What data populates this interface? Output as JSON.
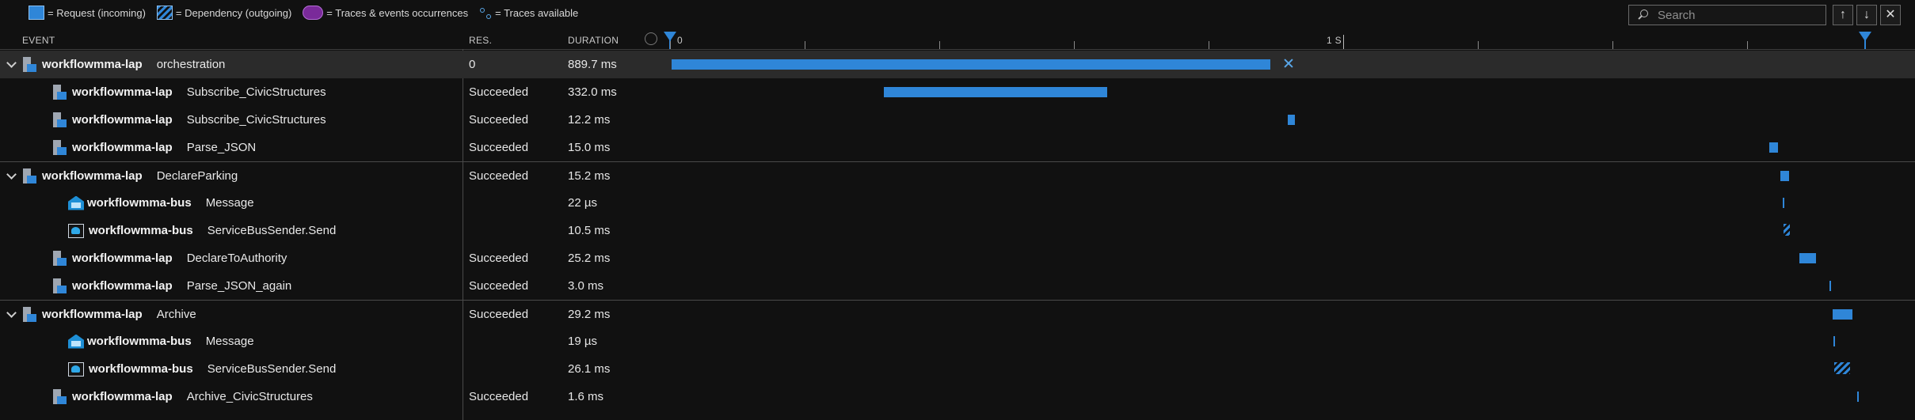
{
  "legend": {
    "request": "= Request (incoming)",
    "dependency": "= Dependency (outgoing)",
    "traces": "= Traces & events occurrences",
    "available": "= Traces available"
  },
  "search": {
    "placeholder": "Search",
    "value": ""
  },
  "toolbar": {
    "up": "↑",
    "down": "↓",
    "close": "✕"
  },
  "columns": {
    "event": "EVENT",
    "res": "RES.",
    "duration": "DURATION"
  },
  "timeline": {
    "label_start": "0",
    "label_1s": "1 S",
    "max_seconds": 1.8
  },
  "colors": {
    "accent": "#2f86d8",
    "background": "#111111",
    "selected_row": "#2b2b2b"
  },
  "rows": [
    {
      "app": "workflowmma-lap",
      "op": "orchestration",
      "res": "0",
      "duration": "889.7 ms",
      "kind": "request",
      "icon": "app-icon",
      "expand": "chevron-down-icon",
      "selected": true
    },
    {
      "app": "workflowmma-lap",
      "op": "Subscribe_CivicStructures",
      "res": "Succeeded",
      "duration": "332.0 ms",
      "kind": "request",
      "icon": "app-icon"
    },
    {
      "app": "workflowmma-lap",
      "op": "Subscribe_CivicStructures",
      "res": "Succeeded",
      "duration": "12.2 ms",
      "kind": "request",
      "icon": "app-icon"
    },
    {
      "app": "workflowmma-lap",
      "op": "Parse_JSON",
      "res": "Succeeded",
      "duration": "15.0 ms",
      "kind": "request",
      "icon": "app-icon"
    },
    {
      "app": "workflowmma-lap",
      "op": "DeclareParking",
      "res": "Succeeded",
      "duration": "15.2 ms",
      "kind": "request",
      "icon": "app-icon",
      "expand": "chevron-down-icon"
    },
    {
      "app": "workflowmma-bus",
      "op": "Message",
      "res": "",
      "duration": "22 µs",
      "kind": "request",
      "icon": "service-bus-icon"
    },
    {
      "app": "workflowmma-bus",
      "op": "ServiceBusSender.Send",
      "res": "",
      "duration": "10.5 ms",
      "kind": "dependency",
      "icon": "service-bus-sender-icon"
    },
    {
      "app": "workflowmma-lap",
      "op": "DeclareToAuthority",
      "res": "Succeeded",
      "duration": "25.2 ms",
      "kind": "request",
      "icon": "app-icon"
    },
    {
      "app": "workflowmma-lap",
      "op": "Parse_JSON_again",
      "res": "Succeeded",
      "duration": "3.0 ms",
      "kind": "request",
      "icon": "app-icon"
    },
    {
      "app": "workflowmma-lap",
      "op": "Archive",
      "res": "Succeeded",
      "duration": "29.2 ms",
      "kind": "request",
      "icon": "app-icon",
      "expand": "chevron-down-icon"
    },
    {
      "app": "workflowmma-bus",
      "op": "Message",
      "res": "",
      "duration": "19 µs",
      "kind": "request",
      "icon": "service-bus-icon"
    },
    {
      "app": "workflowmma-bus",
      "op": "ServiceBusSender.Send",
      "res": "",
      "duration": "26.1 ms",
      "kind": "dependency",
      "icon": "service-bus-sender-icon"
    },
    {
      "app": "workflowmma-lap",
      "op": "Archive_CivicStructures",
      "res": "Succeeded",
      "duration": "1.6 ms",
      "kind": "request",
      "icon": "app-icon"
    }
  ]
}
